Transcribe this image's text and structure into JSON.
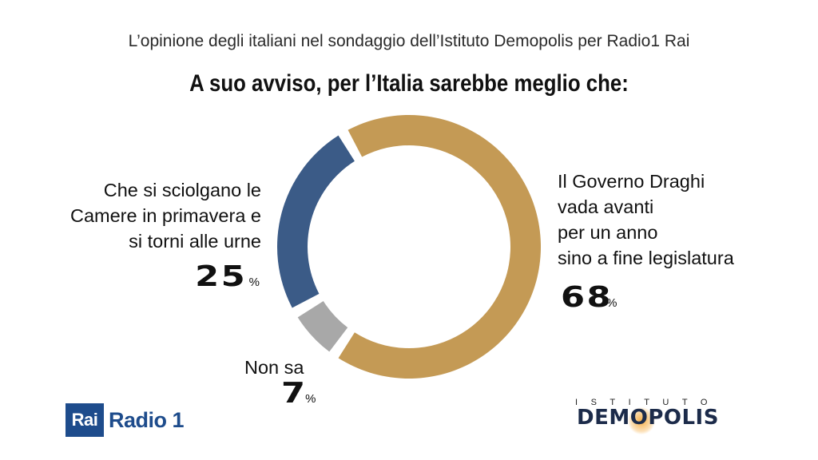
{
  "header": {
    "subtitle": "L’opinione degli italiani nel sondaggio dell’Istituto Demopolis per Radio1 Rai",
    "question": "A suo avviso, per l’Italia sarebbe meglio che:"
  },
  "chart_data": {
    "type": "pie",
    "title": "A suo avviso, per l’Italia sarebbe meglio che:",
    "unit": "%",
    "donut": true,
    "slices": [
      {
        "label": "Il Governo Draghi vada avanti per un anno sino a fine legislatura",
        "value": 68,
        "color": "#c49a55"
      },
      {
        "label": "Non sa",
        "value": 7,
        "color": "#a8a8a8"
      },
      {
        "label": "Che si sciolgano le Camere in primavera e si torni alle urne",
        "value": 25,
        "color": "#3b5b87"
      }
    ]
  },
  "labels": {
    "left_lines": [
      "Che si sciolgano le",
      "Camere in primavera e",
      "si torni alle urne"
    ],
    "right_lines": [
      "Il Governo Draghi",
      "vada avanti",
      "per un anno",
      "sino a fine legislatura"
    ],
    "small_lines": [
      "Non sa"
    ],
    "left_pct": "25",
    "right_pct": "68",
    "small_pct": "7",
    "pct_sign": "%"
  },
  "logos": {
    "rai": "Rai",
    "radio": "Radio 1",
    "istituto": "ISTITUTO",
    "demopolis": "DEMOPOLIS"
  },
  "colors": {
    "draghi": "#c49a55",
    "non_sa": "#a8a8a8",
    "urne": "#3b5b87",
    "rai_blue": "#1e4c8c",
    "demopolis_navy": "#1c2b4a"
  }
}
